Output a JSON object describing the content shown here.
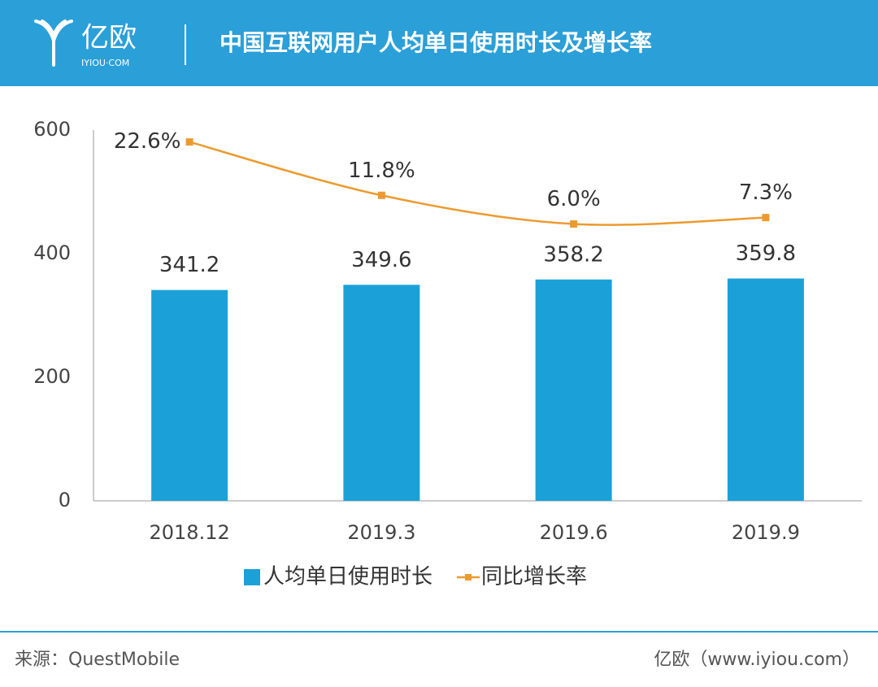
{
  "header": {
    "logo": "亿欧",
    "logo_domain": "IYIOU·COM"
  },
  "chart_data": {
    "type": "bar_line",
    "title": "中国互联网用户人均单日使用时长及增长率",
    "categories": [
      "2018.12",
      "2019.3",
      "2019.6",
      "2019.9"
    ],
    "series": [
      {
        "name": "人均单日使用时长",
        "type": "bar",
        "color": "#1ba1d8",
        "values": [
          341.2,
          349.6,
          358.2,
          359.8
        ]
      },
      {
        "name": "同比增长率",
        "type": "line",
        "color": "#ec9a2e",
        "axis": "y2",
        "values": [
          22.6,
          11.8,
          6.0,
          7.3
        ],
        "value_labels": [
          "22.6%",
          "11.8%",
          "6.0%",
          "7.3%"
        ]
      }
    ],
    "ylim": [
      0,
      600
    ],
    "yticks": [
      0,
      200,
      400,
      600
    ],
    "y2lim": [
      -50,
      25
    ],
    "grid": false,
    "legend": "bottom"
  },
  "footer": {
    "source": "来源：QuestMobile",
    "credit": "亿欧（www.iyiou.com）"
  }
}
